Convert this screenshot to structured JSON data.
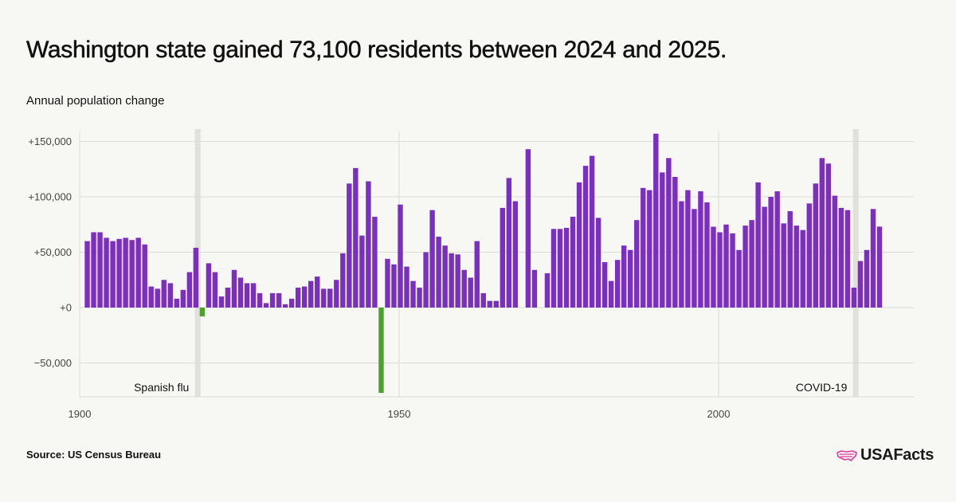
{
  "title": "Washington state gained 73,100 residents between 2024 and 2025.",
  "subtitle": "Annual population change",
  "source": "Source: US Census Bureau",
  "logo": "USAFacts",
  "colors": {
    "positive": "#7b2fbf",
    "negative": "#4aa32a",
    "highlight": "#e1e1dc",
    "grid": "#dcdcd6",
    "logo_mark": "#e0399e"
  },
  "chart_data": {
    "type": "bar",
    "x_start": 1901,
    "x_end": 2025,
    "ylim": [
      -80000,
      160000
    ],
    "y_ticks": [
      {
        "value": 150000,
        "label": "+150,000"
      },
      {
        "value": 100000,
        "label": "+100,000"
      },
      {
        "value": 50000,
        "label": "+50,000"
      },
      {
        "value": 0,
        "label": "+0"
      },
      {
        "value": -50000,
        "label": "−50,000"
      }
    ],
    "x_ticks": [
      {
        "value": 1900,
        "label": "1900"
      },
      {
        "value": 1950,
        "label": "1950"
      },
      {
        "value": 2000,
        "label": "2000"
      }
    ],
    "annotations": [
      {
        "year": 1918,
        "label": "Spanish flu"
      },
      {
        "year": 2021,
        "label": "COVID-19"
      }
    ],
    "values": [
      60000,
      68000,
      68000,
      63000,
      60000,
      62000,
      63000,
      61000,
      63000,
      57000,
      19000,
      17000,
      25000,
      22000,
      8000,
      16000,
      32000,
      54000,
      -8000,
      40000,
      32000,
      10000,
      18000,
      34000,
      27000,
      22000,
      22000,
      13000,
      4000,
      13000,
      13000,
      3000,
      8000,
      18000,
      19000,
      24000,
      28000,
      17000,
      17000,
      25000,
      49000,
      112000,
      126000,
      65000,
      114000,
      82000,
      -77000,
      44000,
      39000,
      93000,
      37000,
      24000,
      18000,
      50000,
      88000,
      64000,
      56000,
      49000,
      48000,
      34000,
      27000,
      60000,
      13000,
      6000,
      6000,
      90000,
      117000,
      96000,
      0,
      143000,
      34000,
      0,
      31000,
      71000,
      71000,
      72000,
      82000,
      113000,
      128000,
      137000,
      81000,
      41000,
      24000,
      43000,
      56000,
      52000,
      79000,
      108000,
      106000,
      157000,
      122000,
      135000,
      118000,
      96000,
      106000,
      89000,
      105000,
      95000,
      73000,
      68000,
      75000,
      67000,
      52000,
      74000,
      79000,
      113000,
      91000,
      100000,
      105000,
      76000,
      87000,
      74000,
      70000,
      94000,
      112000,
      135000,
      130000,
      101000,
      90000,
      88000,
      18000,
      42000,
      52000,
      89000,
      73100
    ]
  }
}
